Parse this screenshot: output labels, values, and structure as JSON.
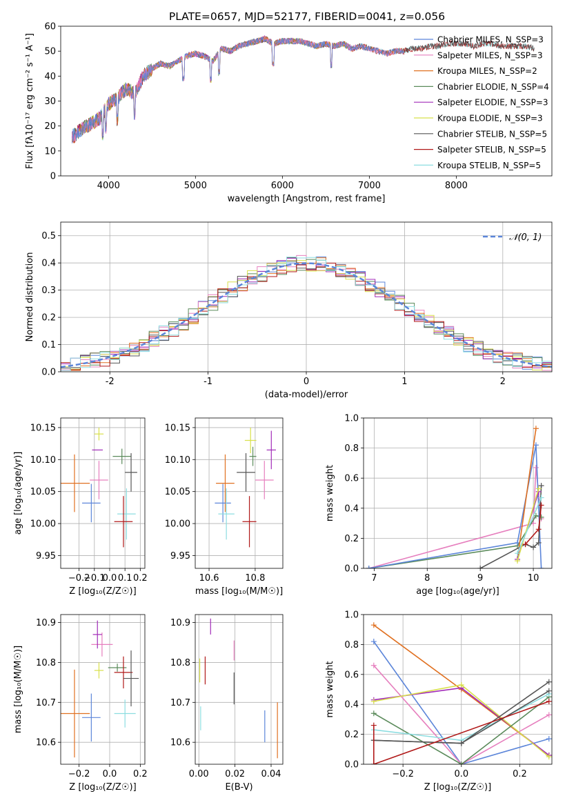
{
  "figure": {
    "title": "PLATE=0657, MJD=52177, FIBERID=0041, z=0.056"
  },
  "chart_data": [
    {
      "id": "spectrum",
      "type": "line",
      "xlabel": "wavelength [Angstrom, rest frame]",
      "ylabel": "Flux [fλ10⁻¹⁷ erg cm⁻² s⁻¹ A⁻¹]",
      "xlim": [
        3450,
        9100
      ],
      "ylim": [
        0,
        60
      ],
      "xticks": [
        4000,
        5000,
        6000,
        7000,
        8000
      ],
      "yticks": [
        0,
        10,
        20,
        30,
        40,
        50,
        60
      ],
      "legend": "top-right",
      "x": [
        3600,
        3700,
        3800,
        3900,
        4000,
        4100,
        4200,
        4300,
        4400,
        4500,
        4600,
        4700,
        4800,
        4900,
        5000,
        5100,
        5200,
        5300,
        5400,
        5500,
        5600,
        5700,
        5800,
        5900,
        6000,
        6100,
        6200,
        6300,
        6400,
        6500,
        6600,
        6700,
        6800,
        6900,
        7000,
        7100,
        7200,
        7300,
        7400,
        7500,
        7600,
        7700,
        7800,
        7900,
        8000,
        8100,
        8200,
        8300,
        8400,
        8500,
        8600,
        8700,
        8800,
        8900
      ],
      "y": [
        16,
        19,
        21,
        23,
        29,
        31,
        35,
        33,
        40,
        43,
        45,
        44,
        46,
        48,
        49,
        48,
        46,
        51,
        50,
        52,
        53,
        54,
        55,
        53,
        54,
        54,
        54,
        53,
        52,
        53,
        52,
        53,
        51,
        52,
        51,
        50,
        49,
        50,
        50,
        51,
        51,
        52,
        52,
        53,
        53,
        53,
        52,
        53,
        53,
        52,
        52,
        52,
        52,
        51
      ],
      "series": [
        {
          "name": "Chabrier MILES, N_SSP=3",
          "color": "#5b85d9",
          "xmax": 7400
        },
        {
          "name": "Salpeter MILES, N_SSP=3",
          "color": "#e67fbe",
          "xmax": 7400
        },
        {
          "name": "Kroupa MILES, N_SSP=2",
          "color": "#e07020",
          "xmax": 7400
        },
        {
          "name": "Chabrier ELODIE, N_SSP=4",
          "color": "#5a8a5a",
          "xmax": 6800
        },
        {
          "name": "Salpeter ELODIE, N_SSP=3",
          "color": "#a12ab8",
          "xmax": 6800
        },
        {
          "name": "Kroupa ELODIE, N_SSP=3",
          "color": "#d8e04a",
          "xmax": 6800
        },
        {
          "name": "Chabrier STELIB, N_SSP=5",
          "color": "#555555",
          "xmax": 8900
        },
        {
          "name": "Salpeter STELIB, N_SSP=5",
          "color": "#b01818",
          "xmax": 8900
        },
        {
          "name": "Kroupa STELIB, N_SSP=5",
          "color": "#8cdde0",
          "xmax": 8900
        }
      ]
    },
    {
      "id": "residuals",
      "type": "line",
      "xlabel": "(data-model)/error",
      "ylabel": "Normed distribution",
      "xlim": [
        -2.5,
        2.5
      ],
      "ylim": [
        0,
        0.55
      ],
      "xticks": [
        -2,
        -1,
        0,
        1,
        2
      ],
      "yticks": [
        0.0,
        0.1,
        0.2,
        0.3,
        0.4,
        0.5
      ],
      "grid": true,
      "legend": "top-right",
      "reference_label": "𝒩(0, 1)",
      "reference_color": "#5b85d9",
      "bin_width": 0.1
    },
    {
      "id": "age_vs_Z",
      "type": "scatter",
      "xlabel": "Z [log₁₀(Z/Z☉)]",
      "ylabel": "age  [log₁₀(age/yr)]",
      "xlim": [
        -0.32,
        0.23
      ],
      "ylim": [
        9.93,
        10.165
      ],
      "xticks": [
        -0.2,
        -0.1,
        0.0,
        0.1,
        0.2
      ],
      "xticklabels": [
        "−0.2",
        "−0.1",
        "0.0",
        "0.1",
        "0.2"
      ],
      "yticks": [
        9.95,
        10.0,
        10.05,
        10.1,
        10.15
      ],
      "grid": true,
      "points": [
        {
          "color": "#e07020",
          "x": -0.23,
          "y": 10.063,
          "xerr": 0.1,
          "yerr": 0.045
        },
        {
          "color": "#5b85d9",
          "x": -0.12,
          "y": 10.032,
          "xerr": 0.06,
          "yerr": 0.03
        },
        {
          "color": "#e67fbe",
          "x": -0.07,
          "y": 10.068,
          "xerr": 0.06,
          "yerr": 0.03
        },
        {
          "color": "#a12ab8",
          "x": -0.08,
          "y": 10.115,
          "xerr": 0.035,
          "yerr": 0.0
        },
        {
          "color": "#d8e04a",
          "x": -0.07,
          "y": 10.14,
          "xerr": 0.03,
          "yerr": 0.01
        },
        {
          "color": "#5a8a5a",
          "x": 0.08,
          "y": 10.105,
          "xerr": 0.06,
          "yerr": 0.012
        },
        {
          "color": "#555555",
          "x": 0.14,
          "y": 10.08,
          "xerr": 0.04,
          "yerr": 0.03
        },
        {
          "color": "#8cdde0",
          "x": 0.11,
          "y": 10.015,
          "xerr": 0.06,
          "yerr": 0.04
        },
        {
          "color": "#b01818",
          "x": 0.09,
          "y": 10.003,
          "xerr": 0.06,
          "yerr": 0.04
        }
      ]
    },
    {
      "id": "age_vs_mass",
      "type": "scatter",
      "xlabel": "mass [log₁₀(M/M☉)]",
      "ylabel": "",
      "xlim": [
        10.54,
        10.92
      ],
      "ylim": [
        9.93,
        10.165
      ],
      "xticks": [
        10.6,
        10.8
      ],
      "yticks": [
        9.95,
        10.0,
        10.05,
        10.1,
        10.15
      ],
      "grid": true,
      "points": [
        {
          "color": "#e07020",
          "x": 10.67,
          "y": 10.063,
          "xerr": 0.04,
          "yerr": 0.045
        },
        {
          "color": "#5b85d9",
          "x": 10.66,
          "y": 10.032,
          "xerr": 0.035,
          "yerr": 0.03
        },
        {
          "color": "#8cdde0",
          "x": 10.675,
          "y": 10.015,
          "xerr": 0.035,
          "yerr": 0.04
        },
        {
          "color": "#e67fbe",
          "x": 10.84,
          "y": 10.068,
          "xerr": 0.04,
          "yerr": 0.03
        },
        {
          "color": "#555555",
          "x": 10.76,
          "y": 10.08,
          "xerr": 0.04,
          "yerr": 0.03
        },
        {
          "color": "#5a8a5a",
          "x": 10.79,
          "y": 10.105,
          "xerr": 0.015,
          "yerr": 0.015
        },
        {
          "color": "#d8e04a",
          "x": 10.78,
          "y": 10.13,
          "xerr": 0.025,
          "yerr": 0.02
        },
        {
          "color": "#a12ab8",
          "x": 10.87,
          "y": 10.115,
          "xerr": 0.02,
          "yerr": 0.03
        },
        {
          "color": "#b01818",
          "x": 10.775,
          "y": 10.003,
          "xerr": 0.03,
          "yerr": 0.04
        }
      ]
    },
    {
      "id": "weight_vs_age",
      "type": "line",
      "xlabel": "age  [log₁₀(age/yr)]",
      "ylabel": "mass weight",
      "xlim": [
        6.8,
        10.35
      ],
      "ylim": [
        0,
        1.0
      ],
      "xticks": [
        7,
        8,
        9,
        10
      ],
      "yticks": [
        0.0,
        0.2,
        0.4,
        0.6,
        0.8,
        1.0
      ],
      "grid": true,
      "series": [
        {
          "color": "#e67fbe",
          "x": [
            6.9,
            10.0,
            10.05,
            10.15
          ],
          "y": [
            0.0,
            0.3,
            0.67,
            0.33
          ]
        },
        {
          "color": "#5a8a5a",
          "x": [
            6.9,
            9.7,
            10.05,
            10.15
          ],
          "y": [
            0.0,
            0.15,
            0.35,
            0.34
          ]
        },
        {
          "color": "#5b85d9",
          "x": [
            6.9,
            9.7,
            10.05,
            10.15
          ],
          "y": [
            0.0,
            0.17,
            0.82,
            0.0
          ]
        },
        {
          "color": "#e07020",
          "x": [
            9.7,
            10.05
          ],
          "y": [
            0.06,
            0.93
          ]
        },
        {
          "color": "#555555",
          "x": [
            9.0,
            9.85,
            10.0,
            10.1,
            10.15
          ],
          "y": [
            0.0,
            0.16,
            0.14,
            0.17,
            0.55
          ]
        },
        {
          "color": "#a12ab8",
          "x": [
            9.7,
            10.1
          ],
          "y": [
            0.06,
            0.51
          ]
        },
        {
          "color": "#d8e04a",
          "x": [
            9.7,
            10.1
          ],
          "y": [
            0.05,
            0.53
          ]
        },
        {
          "color": "#b01818",
          "x": [
            9.85,
            10.1,
            10.15
          ],
          "y": [
            0.16,
            0.26,
            0.42
          ]
        },
        {
          "color": "#8cdde0",
          "x": [
            9.7,
            10.15
          ],
          "y": [
            0.1,
            0.47
          ]
        }
      ]
    },
    {
      "id": "mass_vs_Z",
      "type": "scatter",
      "xlabel": "Z [log₁₀(Z/Z☉)]",
      "ylabel": "mass [log₁₀(M/M☉)]",
      "xlim": [
        -0.32,
        0.23
      ],
      "ylim": [
        10.545,
        10.92
      ],
      "xticks": [
        -0.2,
        0.0,
        0.2
      ],
      "xticklabels": [
        "−0.2",
        "0.0",
        "0.2"
      ],
      "yticks": [
        10.6,
        10.7,
        10.8,
        10.9
      ],
      "grid": true,
      "points": [
        {
          "color": "#e07020",
          "x": -0.23,
          "y": 10.672,
          "xerr": 0.1,
          "yerr": 0.11
        },
        {
          "color": "#5b85d9",
          "x": -0.12,
          "y": 10.662,
          "xerr": 0.06,
          "yerr": 0.06
        },
        {
          "color": "#8cdde0",
          "x": 0.1,
          "y": 10.672,
          "xerr": 0.07,
          "yerr": 0.035
        },
        {
          "color": "#e67fbe",
          "x": -0.05,
          "y": 10.845,
          "xerr": 0.07,
          "yerr": 0.03
        },
        {
          "color": "#a12ab8",
          "x": -0.08,
          "y": 10.87,
          "xerr": 0.03,
          "yerr": 0.035
        },
        {
          "color": "#d8e04a",
          "x": -0.07,
          "y": 10.78,
          "xerr": 0.03,
          "yerr": 0.02
        },
        {
          "color": "#5a8a5a",
          "x": 0.05,
          "y": 10.787,
          "xerr": 0.06,
          "yerr": 0.01
        },
        {
          "color": "#b01818",
          "x": 0.09,
          "y": 10.775,
          "xerr": 0.06,
          "yerr": 0.04
        },
        {
          "color": "#555555",
          "x": 0.14,
          "y": 10.76,
          "xerr": 0.05,
          "yerr": 0.07
        }
      ]
    },
    {
      "id": "mass_vs_ebv",
      "type": "scatter",
      "xlabel": "E(B-V)",
      "ylabel": "",
      "xlim": [
        -0.002,
        0.0465
      ],
      "ylim": [
        10.545,
        10.92
      ],
      "xticks": [
        0.0,
        0.02,
        0.04
      ],
      "xticklabels": [
        "0.00",
        "0.02",
        "0.04"
      ],
      "yticks": [
        10.6,
        10.7,
        10.8,
        10.9
      ],
      "grid": true,
      "points": [
        {
          "color": "#8cdde0",
          "x": 0.001,
          "y": 10.66,
          "xerr": 0.0,
          "yerr": 0.03
        },
        {
          "color": "#d8e04a",
          "x": 0.0005,
          "y": 10.78,
          "xerr": 0.0,
          "yerr": 0.03
        },
        {
          "color": "#b01818",
          "x": 0.0035,
          "y": 10.78,
          "xerr": 0.0,
          "yerr": 0.035
        },
        {
          "color": "#a12ab8",
          "x": 0.0065,
          "y": 10.89,
          "xerr": 0.0,
          "yerr": 0.02
        },
        {
          "color": "#e67fbe",
          "x": 0.0195,
          "y": 10.83,
          "xerr": 0.0,
          "yerr": 0.025
        },
        {
          "color": "#555555",
          "x": 0.0195,
          "y": 10.735,
          "xerr": 0.0,
          "yerr": 0.04
        },
        {
          "color": "#5b85d9",
          "x": 0.0365,
          "y": 10.64,
          "xerr": 0.0,
          "yerr": 0.04
        },
        {
          "color": "#e07020",
          "x": 0.0435,
          "y": 10.63,
          "xerr": 0.0,
          "yerr": 0.07
        }
      ]
    },
    {
      "id": "weight_vs_Z",
      "type": "line",
      "xlabel": "Z [log₁₀(Z/Z☉)]",
      "ylabel": "mass weight",
      "xlim": [
        -0.335,
        0.31
      ],
      "ylim": [
        0,
        1.0
      ],
      "xticks": [
        -0.2,
        0.0,
        0.2
      ],
      "xticklabels": [
        "−0.2",
        "0.0",
        "0.2"
      ],
      "yticks": [
        0.0,
        0.2,
        0.4,
        0.6,
        0.8,
        1.0
      ],
      "grid": true,
      "series": [
        {
          "color": "#e07020",
          "x": [
            -0.3,
            0.0,
            0.3
          ],
          "y": [
            0.93,
            0.5,
            0.06
          ]
        },
        {
          "color": "#5b85d9",
          "x": [
            -0.3,
            0.0,
            0.3
          ],
          "y": [
            0.82,
            0.0,
            0.17
          ]
        },
        {
          "color": "#e67fbe",
          "x": [
            -0.3,
            0.0,
            0.3
          ],
          "y": [
            0.66,
            0.0,
            0.33
          ]
        },
        {
          "color": "#a12ab8",
          "x": [
            -0.3,
            0.0,
            0.3
          ],
          "y": [
            0.43,
            0.51,
            0.06
          ]
        },
        {
          "color": "#d8e04a",
          "x": [
            -0.3,
            0.0,
            0.3
          ],
          "y": [
            0.42,
            0.53,
            0.05
          ]
        },
        {
          "color": "#5a8a5a",
          "x": [
            -0.3,
            0.0,
            0.3
          ],
          "y": [
            0.34,
            0.0,
            0.45
          ]
        },
        {
          "color": "#8cdde0",
          "x": [
            -0.3,
            0.0,
            0.3
          ],
          "y": [
            0.23,
            0.16,
            0.47
          ]
        },
        {
          "color": "#555555",
          "x": [
            -0.3,
            0.0,
            0.3
          ],
          "y": [
            0.16,
            0.14,
            0.55
          ]
        },
        {
          "color": "#555555",
          "x": [
            -0.3,
            0.0,
            0.3
          ],
          "y": [
            0.16,
            0.14,
            0.49
          ]
        },
        {
          "color": "#b01818",
          "x": [
            -0.3,
            -0.3,
            0.3
          ],
          "y": [
            0.26,
            0.0,
            0.42
          ]
        }
      ]
    }
  ]
}
